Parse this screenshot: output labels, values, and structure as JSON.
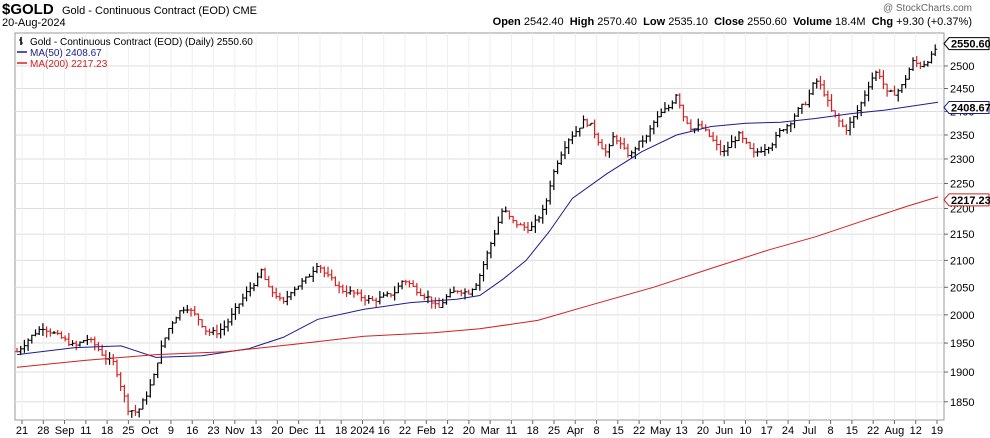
{
  "header": {
    "symbol": "$GOLD",
    "name": "Gold - Continuous Contract (EOD)",
    "exchange": "CME",
    "date": "20-Aug-2024",
    "watermark": "@ StockCharts.com",
    "open_label": "Open",
    "open": "2542.40",
    "high_label": "High",
    "high": "2570.40",
    "low_label": "Low",
    "low": "2535.10",
    "close_label": "Close",
    "close": "2550.60",
    "volume_label": "Volume",
    "volume": "18.4M",
    "chg_label": "Chg",
    "chg": "+9.30 (+0.37%)"
  },
  "legend": [
    {
      "label": "Gold - Continuous Contract (EOD) (Daily) 2550.60",
      "color": "#000000",
      "marker": "bar"
    },
    {
      "label": "MA(50) 2408.67",
      "color": "#1c1c8c",
      "marker": "line"
    },
    {
      "label": "MA(200) 2217.23",
      "color": "#d42020",
      "marker": "line"
    }
  ],
  "chart_data": {
    "type": "ohlc-bar",
    "title": "Gold - Continuous Contract (EOD)",
    "x_tick_labels": [
      "21",
      "28",
      "Sep",
      "11",
      "18",
      "25",
      "Oct",
      "9",
      "16",
      "23",
      "Nov",
      "13",
      "20",
      "Dec",
      "11",
      "18",
      "2024",
      "16",
      "22",
      "Feb",
      "12",
      "20",
      "Mar",
      "11",
      "18",
      "25",
      "Apr",
      "8",
      "15",
      "22",
      "May",
      "13",
      "20",
      "Jun",
      "10",
      "17",
      "24",
      "Jul",
      "8",
      "15",
      "22",
      "Aug",
      "12",
      "19"
    ],
    "y_ticks": [
      1850,
      1900,
      1950,
      2000,
      2050,
      2100,
      2150,
      2200,
      2250,
      2300,
      2350,
      2400,
      2450,
      2500
    ],
    "ylim": [
      1820,
      2575
    ],
    "y_scale": "log",
    "grid": true,
    "price_points": [
      [
        0,
        1935
      ],
      [
        7,
        1965
      ],
      [
        11,
        1978
      ],
      [
        18,
        1962
      ],
      [
        25,
        1944
      ],
      [
        30,
        1958
      ],
      [
        33,
        1950
      ],
      [
        38,
        1925
      ],
      [
        42,
        1915
      ],
      [
        45,
        1875
      ],
      [
        48,
        1838
      ],
      [
        52,
        1832
      ],
      [
        56,
        1862
      ],
      [
        59,
        1890
      ],
      [
        62,
        1938
      ],
      [
        66,
        1980
      ],
      [
        70,
        2005
      ],
      [
        73,
        2015
      ],
      [
        78,
        1995
      ],
      [
        82,
        1970
      ],
      [
        86,
        1968
      ],
      [
        90,
        1980
      ],
      [
        93,
        2000
      ],
      [
        96,
        2020
      ],
      [
        100,
        2045
      ],
      [
        104,
        2065
      ],
      [
        106,
        2085
      ],
      [
        108,
        2050
      ],
      [
        112,
        2035
      ],
      [
        115,
        2020
      ],
      [
        118,
        2042
      ],
      [
        122,
        2055
      ],
      [
        126,
        2070
      ],
      [
        130,
        2095
      ],
      [
        133,
        2075
      ],
      [
        137,
        2060
      ],
      [
        140,
        2045
      ],
      [
        145,
        2040
      ],
      [
        150,
        2030
      ],
      [
        154,
        2025
      ],
      [
        158,
        2032
      ],
      [
        163,
        2040
      ],
      [
        167,
        2065
      ],
      [
        170,
        2055
      ],
      [
        174,
        2040
      ],
      [
        178,
        2030
      ],
      [
        182,
        2010
      ],
      [
        185,
        2030
      ],
      [
        190,
        2045
      ],
      [
        195,
        2040
      ],
      [
        199,
        2060
      ],
      [
        203,
        2110
      ],
      [
        207,
        2160
      ],
      [
        210,
        2200
      ],
      [
        214,
        2175
      ],
      [
        218,
        2165
      ],
      [
        222,
        2160
      ],
      [
        225,
        2180
      ],
      [
        228,
        2200
      ],
      [
        231,
        2260
      ],
      [
        234,
        2300
      ],
      [
        238,
        2340
      ],
      [
        242,
        2360
      ],
      [
        245,
        2380
      ],
      [
        248,
        2370
      ],
      [
        252,
        2330
      ],
      [
        255,
        2310
      ],
      [
        258,
        2350
      ],
      [
        262,
        2320
      ],
      [
        265,
        2305
      ],
      [
        268,
        2330
      ],
      [
        272,
        2345
      ],
      [
        275,
        2375
      ],
      [
        279,
        2400
      ],
      [
        282,
        2410
      ],
      [
        285,
        2440
      ],
      [
        288,
        2390
      ],
      [
        292,
        2360
      ],
      [
        295,
        2370
      ],
      [
        298,
        2355
      ],
      [
        302,
        2330
      ],
      [
        305,
        2310
      ],
      [
        308,
        2330
      ],
      [
        312,
        2350
      ],
      [
        316,
        2325
      ],
      [
        318,
        2310
      ],
      [
        322,
        2320
      ],
      [
        326,
        2330
      ],
      [
        330,
        2360
      ],
      [
        334,
        2375
      ],
      [
        337,
        2400
      ],
      [
        341,
        2420
      ],
      [
        345,
        2470
      ],
      [
        348,
        2450
      ],
      [
        352,
        2400
      ],
      [
        355,
        2380
      ],
      [
        358,
        2360
      ],
      [
        362,
        2390
      ],
      [
        365,
        2420
      ],
      [
        369,
        2470
      ],
      [
        372,
        2490
      ],
      [
        376,
        2440
      ],
      [
        380,
        2440
      ],
      [
        383,
        2460
      ],
      [
        387,
        2510
      ],
      [
        391,
        2500
      ],
      [
        395,
        2520
      ],
      [
        398,
        2550
      ]
    ],
    "series": [
      {
        "name": "MA(50) 2408.67",
        "color": "#1c1c8c",
        "points": [
          [
            0,
            1930
          ],
          [
            25,
            1942
          ],
          [
            45,
            1945
          ],
          [
            60,
            1925
          ],
          [
            80,
            1928
          ],
          [
            100,
            1940
          ],
          [
            115,
            1960
          ],
          [
            130,
            1992
          ],
          [
            150,
            2010
          ],
          [
            170,
            2022
          ],
          [
            190,
            2028
          ],
          [
            200,
            2035
          ],
          [
            210,
            2065
          ],
          [
            220,
            2100
          ],
          [
            230,
            2155
          ],
          [
            240,
            2220
          ],
          [
            255,
            2270
          ],
          [
            270,
            2315
          ],
          [
            285,
            2350
          ],
          [
            300,
            2368
          ],
          [
            315,
            2375
          ],
          [
            330,
            2377
          ],
          [
            345,
            2385
          ],
          [
            360,
            2395
          ],
          [
            375,
            2403
          ],
          [
            398,
            2420
          ]
        ]
      },
      {
        "name": "MA(200) 2217.23",
        "color": "#d42020",
        "points": [
          [
            0,
            1908
          ],
          [
            30,
            1920
          ],
          [
            60,
            1930
          ],
          [
            90,
            1935
          ],
          [
            120,
            1948
          ],
          [
            150,
            1962
          ],
          [
            180,
            1968
          ],
          [
            200,
            1975
          ],
          [
            225,
            1990
          ],
          [
            250,
            2020
          ],
          [
            275,
            2050
          ],
          [
            300,
            2085
          ],
          [
            325,
            2120
          ],
          [
            345,
            2145
          ],
          [
            365,
            2175
          ],
          [
            385,
            2205
          ],
          [
            398,
            2223
          ]
        ]
      }
    ],
    "last_labels": [
      {
        "value": 2550.6,
        "text": "2550.60",
        "color": "#000000"
      },
      {
        "value": 2408.67,
        "text": "2408.67",
        "color": "#1c1c8c"
      },
      {
        "value": 2217.23,
        "text": "2217.23",
        "color": "#d42020"
      }
    ]
  }
}
